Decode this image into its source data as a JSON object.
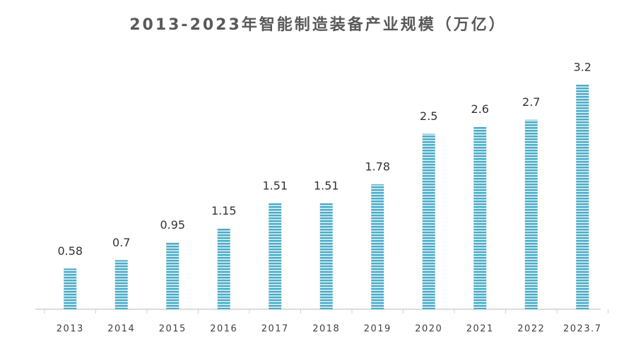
{
  "chart_data": {
    "type": "bar",
    "title": "2013-2023年智能制造装备产业规模（万亿）",
    "categories": [
      "2013",
      "2014",
      "2015",
      "2016",
      "2017",
      "2018",
      "2019",
      "2020",
      "2021",
      "2022",
      "2023.7"
    ],
    "values": [
      0.58,
      0.7,
      0.95,
      1.15,
      1.51,
      1.51,
      1.78,
      2.5,
      2.6,
      2.7,
      3.2
    ],
    "color": "#4bacc6"
  }
}
